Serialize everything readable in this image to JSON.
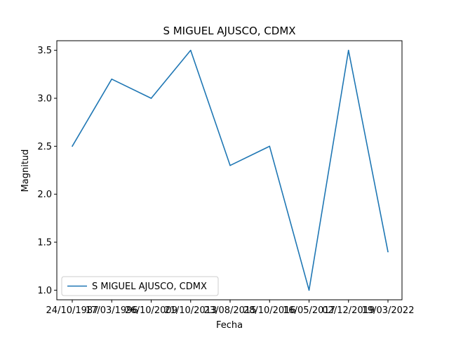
{
  "chart_data": {
    "type": "line",
    "title": "S MIGUEL AJUSCO, CDMX",
    "xlabel": "Fecha",
    "ylabel": "Magnitud",
    "categories": [
      "24/10/1987",
      "17/03/1996",
      "26/10/2009",
      "21/10/2013",
      "23/08/2015",
      "28/10/2016",
      "16/05/2017",
      "02/12/2019",
      "19/03/2022"
    ],
    "series": [
      {
        "name": "S MIGUEL AJUSCO, CDMX",
        "values": [
          2.5,
          3.2,
          3.0,
          3.5,
          2.3,
          2.5,
          1.0,
          3.5,
          1.4
        ],
        "color": "#1f77b4"
      }
    ],
    "ylim": [
      0.9,
      3.6
    ],
    "yticks": [
      "1.0",
      "1.5",
      "2.0",
      "2.5",
      "3.0",
      "3.5"
    ],
    "grid": false,
    "legend_position": "lower-left"
  }
}
